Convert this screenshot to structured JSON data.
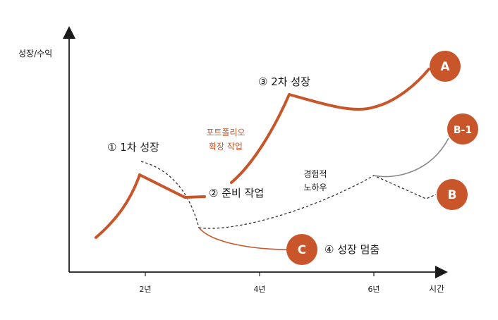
{
  "axes": {
    "y_label": "성장/수익",
    "x_label": "시간",
    "ticks": [
      "2년",
      "4년",
      "6년"
    ]
  },
  "labels": {
    "stage1": "① 1차 성장",
    "stage2": "② 준비 작업",
    "stage3": "③ 2차 성장",
    "stage4": "④ 성장 멈춤",
    "portfolio_line1": "포트폴리오",
    "portfolio_line2": "확장 작업",
    "experience_line1": "경험적",
    "experience_line2": "노하우"
  },
  "badges": {
    "a": "A",
    "b1": "B-1",
    "b": "B",
    "c": "C"
  },
  "colors": {
    "accent": "#c9552b",
    "axis": "#1a1a1a",
    "dashed": "#333333",
    "gray": "#8a8a8a"
  }
}
